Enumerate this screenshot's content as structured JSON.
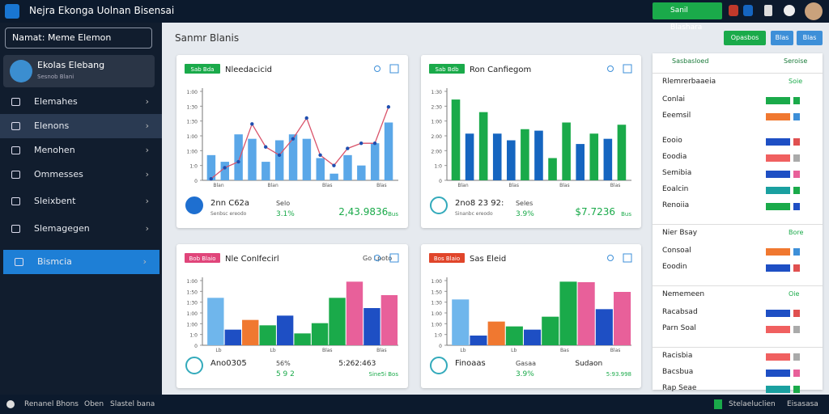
{
  "topbar": {
    "title": "Nejra Ekonga Uolnan Bisensai",
    "button": "Sanil Blashara"
  },
  "sidebar": {
    "search": "Namat: Meme Elemon",
    "profile": {
      "name": "Ekolas Elebang",
      "role": "Sesnob Blani"
    },
    "menu": [
      "Elemahes",
      "Elenons",
      "Menohen",
      "Ommesses",
      "Sleixbent",
      "Slemagegen",
      "Bismcia"
    ]
  },
  "main": {
    "heading": "Sanmr Blanis",
    "buttons": [
      "Opasbos",
      "Blas",
      "Blas"
    ]
  },
  "cards": [
    {
      "tag": "Sab Bda",
      "tag_color": "#1aaa4a",
      "title": "Nleedacicid",
      "aux": "",
      "chart": {
        "ylim": [
          0,
          120
        ],
        "yticks": [
          0,
          {
            "value": 20,
            "label": "1:0"
          },
          {
            "value": 40,
            "label": "1:00"
          },
          {
            "value": 60,
            "label": "1:00"
          },
          {
            "value": 80,
            "label": "1:30"
          },
          {
            "value": 100,
            "label": "1:30"
          },
          {
            "value": 120,
            "label": "1:00"
          }
        ],
        "x_labels": [
          "Blan",
          "Blan",
          "Blas",
          "Blas"
        ],
        "bars": {
          "values": [
            34,
            25,
            62,
            56,
            25,
            54,
            62,
            56,
            30,
            9,
            34,
            20,
            50,
            78
          ],
          "color": "#5aa7e8"
        },
        "line": {
          "values": [
            2,
            17,
            25,
            76,
            45,
            34,
            56,
            84,
            34,
            20,
            43,
            50,
            50,
            99
          ],
          "color": "#1f4fb0",
          "line_color": "#d9536a"
        }
      },
      "stats": {
        "main": "2nn C62a",
        "sub": "Senbsc ereodo",
        "mid": "Selo",
        "pct": "3.1%",
        "big": "2,43.9836",
        "badge": "Bus"
      }
    },
    {
      "tag": "Sab Bdb",
      "tag_color": "#1aaa4a",
      "title": "Ron Canfiegom",
      "aux": "",
      "chart": {
        "ylim": [
          0,
          120
        ],
        "yticks": [
          0,
          {
            "value": 20,
            "label": "1:0"
          },
          {
            "value": 40,
            "label": "2:00"
          },
          {
            "value": 60,
            "label": "2:00"
          },
          {
            "value": 80,
            "label": "1:00"
          },
          {
            "value": 100,
            "label": "2:30"
          },
          {
            "value": 120,
            "label": "1:30"
          }
        ],
        "x_labels": [
          "Blan",
          "Blas",
          "Blas",
          "Blas"
        ],
        "bars": {
          "values": [
            109,
            63,
            92,
            63,
            54,
            69,
            67,
            30,
            78,
            49,
            63,
            56,
            75
          ],
          "colors": [
            "#1aaa4a",
            "#1565c0",
            "#1aaa4a",
            "#1565c0",
            "#1565c0",
            "#1aaa4a",
            "#1565c0",
            "#1aaa4a",
            "#1aaa4a",
            "#1565c0",
            "#1aaa4a",
            "#1565c0",
            "#1aaa4a"
          ]
        }
      },
      "stats": {
        "main": "2no8 23 92:",
        "sub": "Sinanbc ereodo",
        "mid": "Seles",
        "pct": "3.9%",
        "big": "$7.7236",
        "badge": "Bus"
      }
    },
    {
      "tag": "Bob Blaio",
      "tag_color": "#e0457a",
      "title": "Nle Conlfecirl",
      "aux": "Go Lpoto",
      "chart": {
        "ylim": [
          0,
          120
        ],
        "yticks": [
          0,
          {
            "value": 20,
            "label": "1:0"
          },
          {
            "value": 40,
            "label": "1:00"
          },
          {
            "value": 60,
            "label": "1:00"
          },
          {
            "value": 80,
            "label": "1:30"
          },
          {
            "value": 100,
            "label": "1:50"
          },
          {
            "value": 120,
            "label": "1:00"
          }
        ],
        "x_labels": [
          "Lb",
          "Lb",
          "Blas",
          "Blas"
        ],
        "bars": {
          "values": [
            88,
            29,
            47,
            37,
            55,
            22,
            41,
            88,
            118,
            69,
            93
          ],
          "colors": [
            "#6fb6ec",
            "#1e4fc4",
            "#f07830",
            "#1aaa4a",
            "#1e4fc4",
            "#1aaa4a",
            "#1aaa4a",
            "#1aaa4a",
            "#e8609a",
            "#1e4fc4",
            "#e8609a"
          ]
        }
      },
      "stats": {
        "main": "Ano0305",
        "sub": "",
        "mid": "56%",
        "pct": "5 9 2",
        "big": "5:262:463",
        "badge": "Sine5i Bos"
      }
    },
    {
      "tag": "Bos Blaio",
      "tag_color": "#e0452a",
      "title": "Sas Eleid",
      "aux": "",
      "chart": {
        "ylim": [
          0,
          120
        ],
        "yticks": [
          0,
          {
            "value": 20,
            "label": "1:0"
          },
          {
            "value": 40,
            "label": "1:00"
          },
          {
            "value": 60,
            "label": "1:00"
          },
          {
            "value": 80,
            "label": "1:30"
          },
          {
            "value": 100,
            "label": "1:50"
          },
          {
            "value": 120,
            "label": "1:00"
          }
        ],
        "x_labels": [
          "Lb",
          "Lb",
          "Bas",
          "Blas"
        ],
        "bars": {
          "values": [
            85,
            18,
            44,
            35,
            29,
            53,
            118,
            117,
            67,
            99
          ],
          "colors": [
            "#6fb6ec",
            "#1e4fc4",
            "#f07830",
            "#1aaa4a",
            "#1e4fc4",
            "#1aaa4a",
            "#1aaa4a",
            "#e8609a",
            "#1e4fc4",
            "#e8609a"
          ]
        }
      },
      "stats": {
        "main": "Finoaas",
        "sub": "",
        "mid": "Gasaa",
        "pct": "3.9%",
        "big": "Sudaon",
        "badge": "5:93.998"
      }
    }
  ],
  "panel": {
    "header": [
      "Sasbasloed",
      "Seroise"
    ],
    "sections": [
      {
        "title": "Rlemrerbaaeia",
        "note": "Soie",
        "rows": [
          "Conlai",
          "Eeemsil",
          "Eooio",
          "Eoodia",
          "Semibia",
          "Eoalcin",
          "Renoiia"
        ]
      },
      {
        "title": "Nier Bsay",
        "note": "Bore",
        "rows": [
          "Consoal",
          "Eoodin"
        ]
      },
      {
        "title": "Nememeen",
        "note": "Oie",
        "rows": [
          "Racabsad",
          "Parn Soal"
        ]
      },
      {
        "title": "",
        "note": "",
        "rows": [
          "Racisbia",
          "Bacsbua",
          "Rap Seae"
        ]
      }
    ]
  },
  "footer": {
    "left": [
      "Renanel Bhons",
      "Oben",
      "Slastel bana"
    ],
    "right": [
      "Stelaeluclien",
      "Eisasasa"
    ]
  }
}
